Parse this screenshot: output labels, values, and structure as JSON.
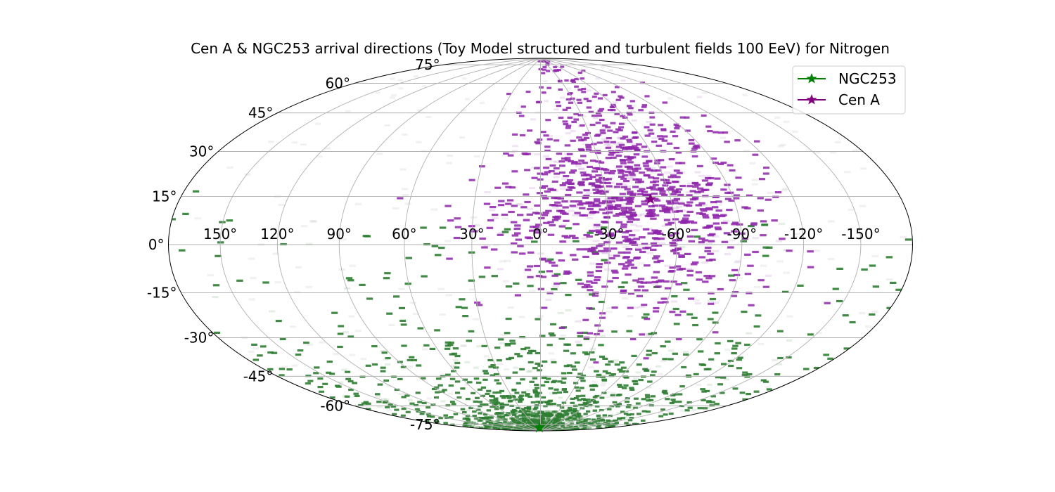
{
  "chart_data": {
    "type": "scatter",
    "projection": "hammer",
    "title": "Cen A & NGC253 arrival directions (Toy Model structured and turbulent fields 100 EeV) for Nitrogen",
    "xlabel": "",
    "ylabel": "",
    "longitude_ticks": [
      "150°",
      "120°",
      "90°",
      "60°",
      "30°",
      "0°",
      "-30°",
      "-60°",
      "-90°",
      "-120°",
      "-150°"
    ],
    "latitude_ticks": [
      "75°",
      "60°",
      "45°",
      "30°",
      "15°",
      "0°",
      "-15°",
      "-30°",
      "-45°",
      "-60°",
      "-75°"
    ],
    "xlim": [
      -180,
      180
    ],
    "ylim": [
      -90,
      90
    ],
    "grid": true,
    "legend_position": "top-right",
    "colors": {
      "ngc253": "#008000",
      "cena": "#800080",
      "ngc253_cells": "#2e7d32",
      "cena_cells": "#8e24aa"
    },
    "series": [
      {
        "name": "NGC253",
        "source_marker": {
          "lon": 9.8,
          "lat": -88.0
        },
        "description_density": "concentrated toward south galactic pole",
        "center": {
          "lon": 5,
          "lat": -62
        },
        "count": 1400
      },
      {
        "name": "Cen A",
        "source_marker": {
          "lon": -50.5,
          "lat": 19.4
        },
        "description_density": "concentrated around Cen A, extending north",
        "center": {
          "lon": -42,
          "lat": 12
        },
        "count": 1250
      }
    ],
    "legend": [
      "NGC253",
      "Cen A"
    ]
  }
}
